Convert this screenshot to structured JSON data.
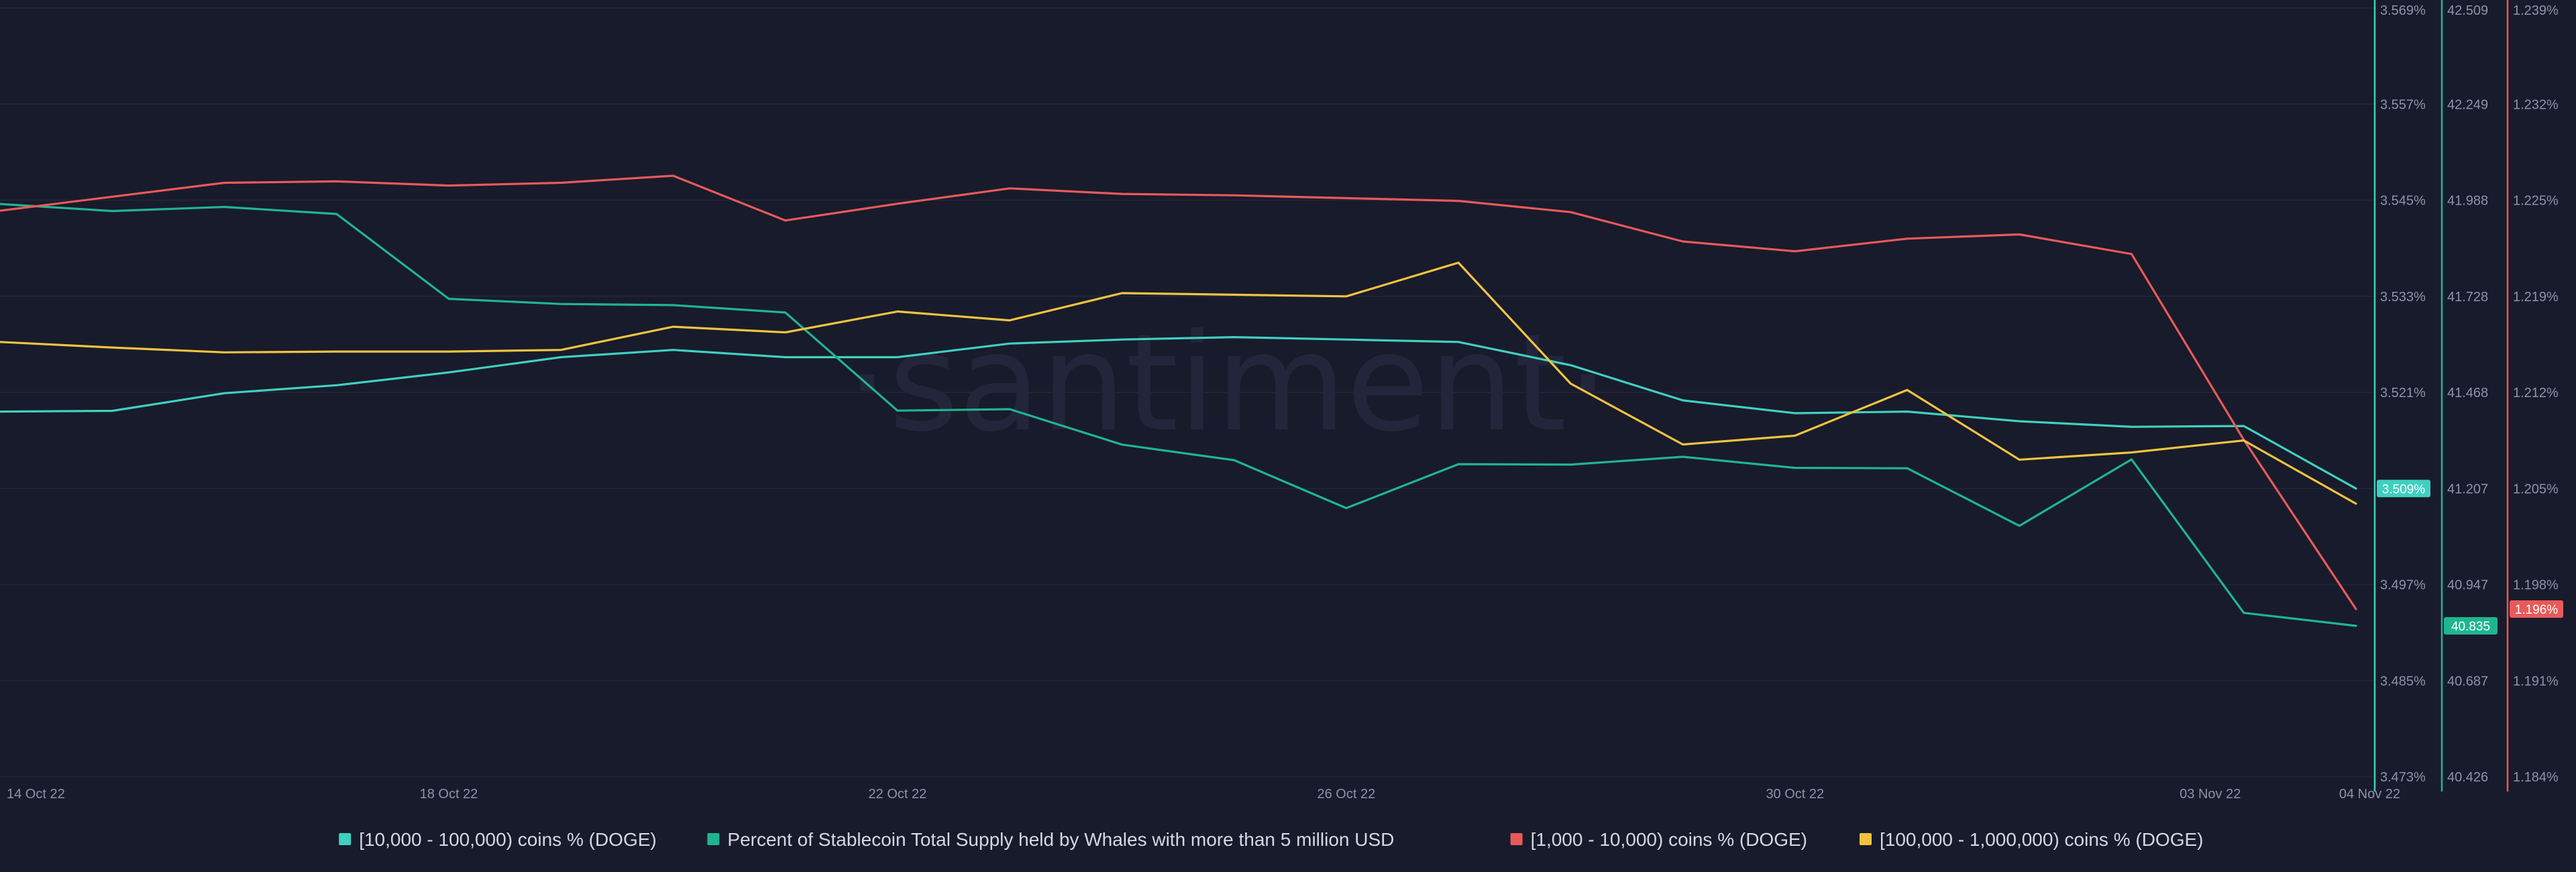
{
  "watermark": "·santiment·",
  "colors": {
    "background": "#181b2b",
    "grid": "#22263a",
    "axis_teal": "#40d0c0",
    "axis_green": "#1fb592",
    "axis_red": "#e85a5a",
    "axis_yellow": "#f2c340"
  },
  "chart_data": {
    "type": "line",
    "x": [
      "14 Oct 22",
      "15 Oct 22",
      "16 Oct 22",
      "17 Oct 22",
      "18 Oct 22",
      "19 Oct 22",
      "20 Oct 22",
      "21 Oct 22",
      "22 Oct 22",
      "23 Oct 22",
      "24 Oct 22",
      "25 Oct 22",
      "26 Oct 22",
      "27 Oct 22",
      "28 Oct 22",
      "29 Oct 22",
      "30 Oct 22",
      "31 Oct 22",
      "01 Nov 22",
      "02 Nov 22",
      "03 Nov 22",
      "04 Nov 22"
    ],
    "x_tick_labels": [
      "14 Oct 22",
      "18 Oct 22",
      "22 Oct 22",
      "26 Oct 22",
      "30 Oct 22",
      "03 Nov 22",
      "04 Nov 22"
    ],
    "series": [
      {
        "name": "[10,000 - 100,000) coins % (DOGE)",
        "color": "#40d0c0",
        "axis": 0,
        "values": [
          3.5186,
          3.5187,
          3.5209,
          3.5219,
          3.5235,
          3.5254,
          3.5263,
          3.5254,
          3.5254,
          3.5271,
          3.5276,
          3.5279,
          3.5276,
          3.5273,
          3.5244,
          3.52,
          3.5184,
          3.5186,
          3.5174,
          3.5167,
          3.5168,
          3.509
        ],
        "last_label": "3.509%"
      },
      {
        "name": "Percent of Stablecoin Total Supply held by Whales with more than 5 million USD",
        "color": "#1fb592",
        "axis": 1,
        "values": [
          41.978,
          41.959,
          41.97,
          41.951,
          41.721,
          41.707,
          41.704,
          41.684,
          41.418,
          41.422,
          41.326,
          41.284,
          41.154,
          41.273,
          41.272,
          41.293,
          41.263,
          41.262,
          41.106,
          41.286,
          40.87,
          40.835
        ],
        "last_label": "40.835"
      },
      {
        "name": "[1,000 - 10,000) coins % (DOGE)",
        "color": "#e85a5a",
        "axis": 2,
        "values": [
          1.2245,
          1.2255,
          1.2265,
          1.2266,
          1.2263,
          1.2265,
          1.227,
          1.2238,
          1.225,
          1.2261,
          1.2257,
          1.2256,
          1.2254,
          1.2252,
          1.2244,
          1.2223,
          1.2216,
          1.2225,
          1.2228,
          1.2214,
          1.2081,
          1.196
        ],
        "last_label": "1.196%"
      },
      {
        "name": "[100,000  - 1,000,000) coins % (DOGE)",
        "color": "#f2c340",
        "axis": 0,
        "values": [
          3.5273,
          3.5266,
          3.526,
          3.5261,
          3.5261,
          3.5263,
          3.5292,
          3.5285,
          3.5311,
          3.53,
          3.5334,
          3.5332,
          3.533,
          3.5372,
          3.5221,
          3.5145,
          3.5156,
          3.5213,
          3.5126,
          3.5135,
          3.515,
          3.5071
        ]
      }
    ],
    "y_axes": [
      {
        "color": "#40d0c0",
        "ylim": [
          3.473,
          3.569
        ],
        "ticks": [
          "3.569%",
          "3.557%",
          "3.545%",
          "3.533%",
          "3.521%",
          "3.509%",
          "3.497%",
          "3.485%",
          "3.473%"
        ]
      },
      {
        "color": "#1fb592",
        "ylim": [
          40.426,
          42.509
        ],
        "ticks": [
          "42.509",
          "42.249",
          "41.988",
          "41.728",
          "41.468",
          "41.207",
          "40.947",
          "40.687",
          "40.426"
        ]
      },
      {
        "color": "#e85a5a",
        "ylim": [
          1.184,
          1.239
        ],
        "ticks": [
          "1.239%",
          "1.232%",
          "1.225%",
          "1.219%",
          "1.212%",
          "1.205%",
          "1.198%",
          "1.191%",
          "1.184%"
        ]
      }
    ],
    "grid": true,
    "legend": "bottom-center"
  }
}
